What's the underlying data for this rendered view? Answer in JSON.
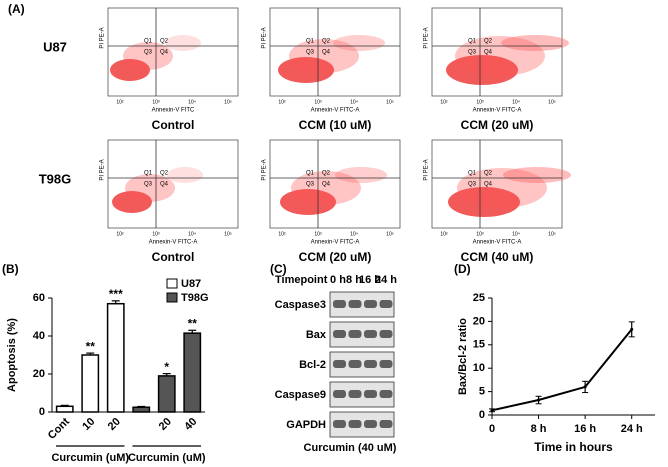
{
  "panel_a": {
    "label": "(A)",
    "x_ticks": [
      "10²",
      "10³",
      "10⁴",
      "10⁵"
    ],
    "y_label": "PI PE-A",
    "rows": [
      {
        "name": "U87",
        "plots": [
          {
            "caption": "Control",
            "x_label": "Annexin-V FITC",
            "quadrants": [
              "Q1",
              "Q2",
              "Q3",
              "Q4"
            ]
          },
          {
            "caption": "CCM (10 uM)",
            "x_label": "Annexin-V FITC-A",
            "quadrants": [
              "Q1",
              "Q2",
              "Q3",
              "Q4"
            ]
          },
          {
            "caption": "CCM (20 uM)",
            "x_label": "Annexin-V FITC-A",
            "quadrants": [
              "Q1",
              "Q2",
              "Q3",
              "Q4"
            ]
          }
        ]
      },
      {
        "name": "T98G",
        "plots": [
          {
            "caption": "Control",
            "x_label": "Annexin-V FITC-A",
            "quadrants": [
              "Q1",
              "Q2",
              "Q3",
              "Q4"
            ]
          },
          {
            "caption": "CCM (20 uM)",
            "x_label": "Annexin-V FITC-A",
            "quadrants": [
              "Q1",
              "Q2",
              "Q3",
              "Q4"
            ]
          },
          {
            "caption": "CCM (40 uM)",
            "x_label": "Annexin-V FITC-A",
            "quadrants": [
              "Q1",
              "Q2",
              "Q3",
              "Q4"
            ]
          }
        ]
      }
    ]
  },
  "panel_c": {
    "label": "(C)",
    "header": "Timepoint",
    "timepoints": [
      "0 h",
      "8 h",
      "16 h",
      "24 h"
    ],
    "proteins": [
      "Caspase3",
      "Bax",
      "Bcl-2",
      "Caspase9",
      "GAPDH"
    ],
    "caption": "Curcumin (40 uM)"
  },
  "chart_data": [
    {
      "type": "bar",
      "panel_label": "(B)",
      "y_label": "Apoptosis (%)",
      "categories": [
        "Cont",
        "10",
        "20",
        null,
        "20",
        "40"
      ],
      "group_labels": [
        "Curcumin (uM)",
        "Curcumin (uM)"
      ],
      "series": [
        {
          "name": "U87",
          "color": "#ffffff",
          "values": [
            3,
            30,
            57,
            null,
            null,
            null
          ],
          "errors": [
            0.5,
            1,
            1.5,
            null,
            null,
            null
          ]
        },
        {
          "name": "T98G",
          "color": "#555555",
          "values": [
            null,
            null,
            null,
            2.5,
            19,
            41.5
          ],
          "errors": [
            null,
            null,
            null,
            0.4,
            1.2,
            1.5
          ]
        }
      ],
      "significance": [
        null,
        "**",
        "***",
        null,
        "*",
        "**"
      ],
      "ylim": [
        0,
        60
      ],
      "yticks": [
        0,
        20,
        40,
        60
      ],
      "legend": "upper right"
    },
    {
      "type": "line",
      "panel_label": "(D)",
      "y_label": "Bax/Bcl-2 ratio",
      "x_label": "Time in hours",
      "x": [
        0,
        8,
        16,
        24
      ],
      "values": [
        1,
        3.2,
        6,
        18.3
      ],
      "errors": [
        0.3,
        0.8,
        1.2,
        1.6
      ],
      "color": "#000000",
      "xlim": [
        0,
        28
      ],
      "xticks": [
        0,
        {
          "value": 8,
          "label": "8 h"
        },
        {
          "value": 16,
          "label": "16 h"
        },
        {
          "value": 24,
          "label": "24 h"
        }
      ],
      "ylim": [
        0,
        25
      ],
      "yticks": [
        0,
        5,
        10,
        15,
        20,
        25
      ]
    }
  ]
}
